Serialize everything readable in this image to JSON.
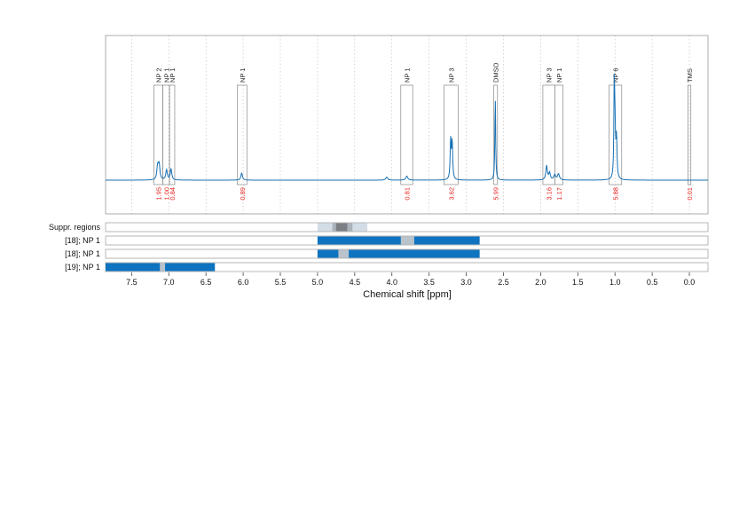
{
  "chart_data": {
    "type": "line",
    "title": "",
    "xlabel": "Chemical shift [ppm]",
    "ylabel": "",
    "xlim": [
      7.85,
      -0.25
    ],
    "x_reversed": true,
    "grid": "vertical dotted",
    "x_ticks": [
      "7.5",
      "7.0",
      "6.5",
      "6.0",
      "5.5",
      "5.0",
      "4.5",
      "4.0",
      "3.5",
      "3.0",
      "2.5",
      "2.0",
      "1.5",
      "1.0",
      "0.5",
      "0.0"
    ],
    "tick_values": [
      7.5,
      7.0,
      6.5,
      6.0,
      5.5,
      5.0,
      4.5,
      4.0,
      3.5,
      3.0,
      2.5,
      2.0,
      1.5,
      1.0,
      0.5,
      0.0
    ],
    "spectrum_peaks": [
      {
        "shift": 7.15,
        "height": 0.13,
        "width": 0.012
      },
      {
        "shift": 7.13,
        "height": 0.15,
        "width": 0.012
      },
      {
        "shift": 7.03,
        "height": 0.1,
        "width": 0.012
      },
      {
        "shift": 6.97,
        "height": 0.11,
        "width": 0.012
      },
      {
        "shift": 6.02,
        "height": 0.07,
        "width": 0.012
      },
      {
        "shift": 4.07,
        "height": 0.03,
        "width": 0.015
      },
      {
        "shift": 3.8,
        "height": 0.04,
        "width": 0.015
      },
      {
        "shift": 3.21,
        "height": 0.38,
        "width": 0.008
      },
      {
        "shift": 3.19,
        "height": 0.38,
        "width": 0.008
      },
      {
        "shift": 2.61,
        "height": 0.85,
        "width": 0.006
      },
      {
        "shift": 1.92,
        "height": 0.14,
        "width": 0.012
      },
      {
        "shift": 1.88,
        "height": 0.07,
        "width": 0.012
      },
      {
        "shift": 1.81,
        "height": 0.05,
        "width": 0.015
      },
      {
        "shift": 1.76,
        "height": 0.06,
        "width": 0.015
      },
      {
        "shift": 1.01,
        "height": 0.9,
        "width": 0.006
      },
      {
        "shift": 1.0,
        "height": 0.45,
        "width": 0.008
      },
      {
        "shift": 0.98,
        "height": 0.4,
        "width": 0.008
      }
    ],
    "annotations": [
      {
        "label": "NP 2",
        "integral": "1.95",
        "from": 7.2,
        "to": 7.08
      },
      {
        "label": "NP 1",
        "integral": "1.00",
        "from": 7.08,
        "to": 6.99
      },
      {
        "label": "NP 1",
        "integral": "0.84",
        "from": 6.99,
        "to": 6.92
      },
      {
        "label": "NP 1",
        "integral": "0.89",
        "from": 6.08,
        "to": 5.95
      },
      {
        "label": "NP 1",
        "integral": "0.81",
        "from": 3.88,
        "to": 3.72
      },
      {
        "label": "NP 3",
        "integral": "3.62",
        "from": 3.3,
        "to": 3.11
      },
      {
        "label": "DMSO",
        "integral": "5.99",
        "from": 2.63,
        "to": 2.58
      },
      {
        "label": "NP 3",
        "integral": "3.16",
        "from": 1.97,
        "to": 1.81
      },
      {
        "label": "NP 1",
        "integral": "1.17",
        "from": 1.81,
        "to": 1.7
      },
      {
        "label": "NP 6",
        "integral": "5.88",
        "from": 1.08,
        "to": 0.91
      },
      {
        "label": "TMS",
        "integral": "0.01",
        "from": 0.02,
        "to": -0.02
      }
    ],
    "tracks": [
      {
        "label": "Suppr. regions",
        "segments": [
          {
            "from": 5.0,
            "to": 4.33,
            "color": "#d3dde6"
          },
          {
            "from": 4.8,
            "to": 4.53,
            "color": "#aab2ba"
          },
          {
            "from": 4.75,
            "to": 4.6,
            "color": "#7b7f85"
          }
        ]
      },
      {
        "label": "[18]; NP 1",
        "segments": [
          {
            "from": 5.0,
            "to": 2.82,
            "color": "#0e74c0"
          },
          {
            "from": 3.88,
            "to": 3.7,
            "color": "#b9c3cc"
          }
        ]
      },
      {
        "label": "[18]; NP 1",
        "segments": [
          {
            "from": 5.0,
            "to": 2.82,
            "color": "#0e74c0"
          },
          {
            "from": 4.72,
            "to": 4.58,
            "color": "#b9c3cc"
          }
        ]
      },
      {
        "label": "[19]; NP 1",
        "segments": [
          {
            "from": 7.85,
            "to": 6.38,
            "color": "#0e74c0"
          },
          {
            "from": 7.12,
            "to": 7.05,
            "color": "#b9c3cc"
          }
        ]
      }
    ],
    "colors": {
      "spectrum": "#1670b4",
      "integral_text": "#e8241f",
      "frame": "#999999",
      "grid": "#bbbbbb",
      "track_fill": "#0e74c0",
      "track_gap": "#b9c3cc"
    }
  }
}
